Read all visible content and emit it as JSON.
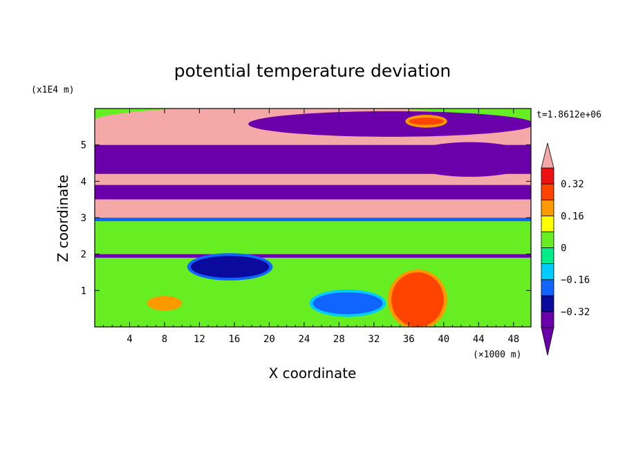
{
  "chart_data": {
    "type": "heatmap",
    "title": "potential temperature deviation",
    "xlabel": "X coordinate",
    "ylabel": "Z coordinate",
    "x_unit": "(×1000 m)",
    "y_unit": "(x1E4 m)",
    "time_label": "t=1.8612e+06",
    "xlim": [
      0,
      50
    ],
    "ylim": [
      0,
      6
    ],
    "x_ticks": [
      4,
      8,
      12,
      16,
      20,
      24,
      28,
      32,
      36,
      40,
      44,
      48
    ],
    "x_tick_labels": [
      "4",
      "8",
      "12",
      "16",
      "20",
      "24",
      "28",
      "32",
      "36",
      "40",
      "44",
      "48"
    ],
    "y_ticks": [
      1,
      2,
      3,
      4,
      5
    ],
    "y_tick_labels": [
      "1",
      "2",
      "3",
      "4",
      "5"
    ],
    "colorbar": {
      "levels": [
        -0.4,
        -0.32,
        -0.24,
        -0.16,
        -0.08,
        0,
        0.08,
        0.16,
        0.24,
        0.32,
        0.4
      ],
      "labels": [
        {
          "value": 0.32,
          "text": "0.32"
        },
        {
          "value": 0.16,
          "text": "0.16"
        },
        {
          "value": 0,
          "text": "0"
        },
        {
          "value": -0.16,
          "text": "−0.16"
        },
        {
          "value": -0.32,
          "text": "−0.32"
        }
      ],
      "colors": [
        "#6a00aa",
        "#0a0a9e",
        "#1064ff",
        "#00ccff",
        "#00ee88",
        "#66ee22",
        "#ffff00",
        "#ff9900",
        "#ff4400",
        "#ee1111"
      ],
      "under_color": "#6a00aa",
      "over_color": "#f5a8a8"
    },
    "bands": [
      {
        "z": [
          5.6,
          6.0
        ],
        "value": 0.0
      },
      {
        "z": [
          5.0,
          5.6
        ],
        "value": 0.5
      },
      {
        "z": [
          4.2,
          5.0
        ],
        "value": -0.5
      },
      {
        "z": [
          3.9,
          4.2
        ],
        "value": 0.5
      },
      {
        "z": [
          3.5,
          3.9
        ],
        "value": -0.5
      },
      {
        "z": [
          3.0,
          3.5
        ],
        "value": 0.5
      },
      {
        "z": [
          2.9,
          3.0
        ],
        "value": -0.2
      },
      {
        "z": [
          2.0,
          2.9
        ],
        "value": 0.05
      },
      {
        "z": [
          1.9,
          2.0
        ],
        "value": -0.35
      },
      {
        "z": [
          0.0,
          1.9
        ],
        "value": 0.0
      }
    ],
    "features": [
      {
        "name": "upper-left-pink-lobe",
        "x": [
          0,
          44
        ],
        "z": [
          5.25,
          6.0
        ],
        "value": 0.5
      },
      {
        "name": "upper-right-purple-lobe",
        "x": [
          18,
          50
        ],
        "z": [
          5.3,
          5.85
        ],
        "value": -0.5
      },
      {
        "name": "upper-warm-spot",
        "x": [
          36,
          40
        ],
        "z": [
          5.55,
          5.75
        ],
        "value": 0.3
      },
      {
        "name": "right-purple-tongue",
        "x": [
          36,
          50
        ],
        "z": [
          4.2,
          5.0
        ],
        "value": -0.5
      },
      {
        "name": "low-level-blue-cell",
        "x": [
          25,
          33
        ],
        "z": [
          0.35,
          0.95
        ],
        "value": -0.2
      },
      {
        "name": "low-level-warm-plume",
        "x": [
          34,
          40
        ],
        "z": [
          0.0,
          1.5
        ],
        "value": 0.3
      },
      {
        "name": "low-level-orange-spot",
        "x": [
          6,
          10
        ],
        "z": [
          0.45,
          0.85
        ],
        "value": 0.18
      },
      {
        "name": "dark-blue-wave",
        "x": [
          11,
          20
        ],
        "z": [
          1.35,
          1.95
        ],
        "value": -0.3
      }
    ]
  }
}
